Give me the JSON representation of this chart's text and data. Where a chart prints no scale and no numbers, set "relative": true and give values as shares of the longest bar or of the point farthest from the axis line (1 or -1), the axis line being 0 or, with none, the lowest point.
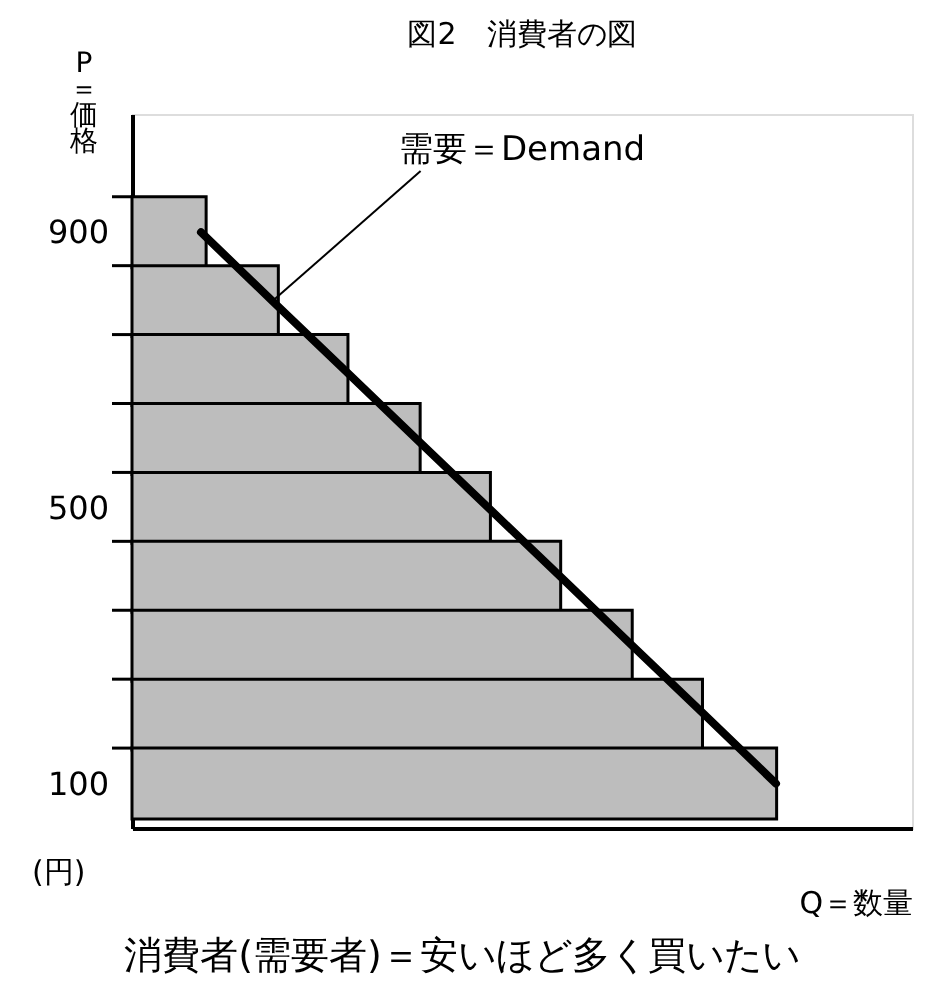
{
  "chart_data": {
    "type": "bar",
    "orientation": "horizontal",
    "relative": true,
    "title": "図2　消費者の図",
    "xlabel": "Q＝数量",
    "ylabel": "P＝価格",
    "categories": [
      "900",
      null,
      null,
      null,
      "500",
      null,
      null,
      null,
      "100"
    ],
    "series": [
      {
        "type": "bar",
        "color": "#bdbdbd",
        "values": [
          0.115,
          0.227,
          0.335,
          0.447,
          0.556,
          0.665,
          0.776,
          0.885,
          1
        ]
      },
      {
        "type": "line",
        "color": "#000000",
        "values": [
          0.107,
          0.218,
          0.33,
          0.441,
          0.553,
          0.665,
          0.776,
          0.888,
          0.999
        ]
      }
    ],
    "annotations": [
      "(円)",
      "需要＝Demand",
      "消費者(需要者)＝安いほど多く買いたい"
    ],
    "grid": false
  }
}
